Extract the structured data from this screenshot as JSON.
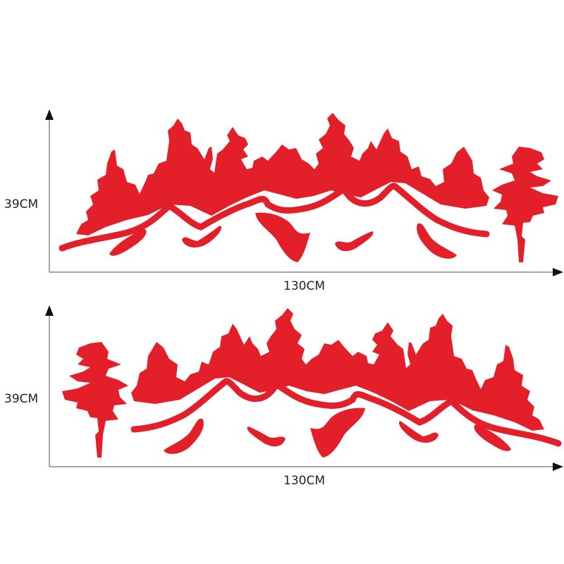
{
  "colors": {
    "decal": "#e3202a",
    "axis": "#888888",
    "arrow": "#111111"
  },
  "panels": [
    {
      "height_label": "39CM",
      "width_label": "130CM",
      "orientation": "normal"
    },
    {
      "height_label": "39CM",
      "width_label": "130CM",
      "orientation": "mirrored"
    }
  ]
}
